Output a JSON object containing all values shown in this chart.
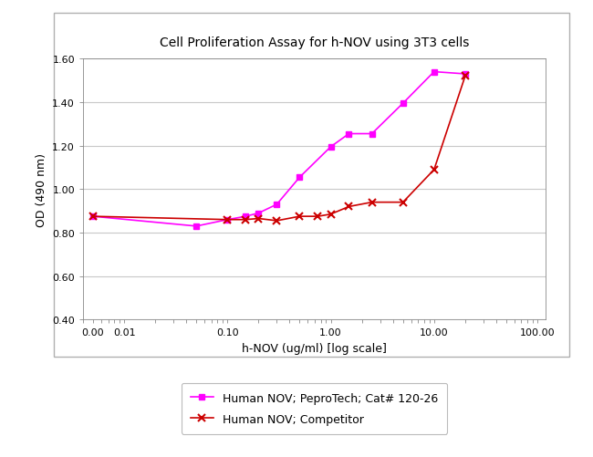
{
  "title": "Cell Proliferation Assay for h-NOV using 3T3 cells",
  "xlabel": "h-NOV (ug/ml) [log scale]",
  "ylabel": "OD (490 nm)",
  "ylim": [
    0.4,
    1.6
  ],
  "yticks": [
    0.4,
    0.6,
    0.8,
    1.0,
    1.2,
    1.4,
    1.6
  ],
  "series1_label": "Human NOV; PeproTech; Cat# 120-26",
  "series1_color": "#ff00ff",
  "series1_x": [
    0.005,
    0.05,
    0.1,
    0.15,
    0.2,
    0.3,
    0.5,
    1.0,
    1.5,
    2.5,
    5.0,
    10.0,
    20.0
  ],
  "series1_y": [
    0.875,
    0.83,
    0.86,
    0.875,
    0.89,
    0.93,
    1.055,
    1.195,
    1.255,
    1.255,
    1.395,
    1.54,
    1.53
  ],
  "series2_label": "Human NOV; Competitor",
  "series2_color": "#cc0000",
  "series2_x": [
    0.005,
    0.1,
    0.15,
    0.2,
    0.3,
    0.5,
    0.75,
    1.0,
    1.5,
    2.5,
    5.0,
    10.0,
    20.0
  ],
  "series2_y": [
    0.875,
    0.86,
    0.86,
    0.865,
    0.855,
    0.875,
    0.875,
    0.885,
    0.92,
    0.94,
    0.94,
    1.09,
    1.52
  ],
  "bg_color": "#ffffff",
  "plot_bg_color": "#ffffff",
  "grid_color": "#c8c8c8",
  "outer_frame_color": "#b0b0b0",
  "title_fontsize": 10,
  "label_fontsize": 9,
  "tick_fontsize": 8,
  "xtick_vals": [
    0.005,
    0.01,
    0.1,
    1.0,
    10.0,
    100.0
  ],
  "xtick_labels": [
    "0.00",
    "0.01",
    "0.10",
    "1.00",
    "10.00",
    "100.00"
  ]
}
